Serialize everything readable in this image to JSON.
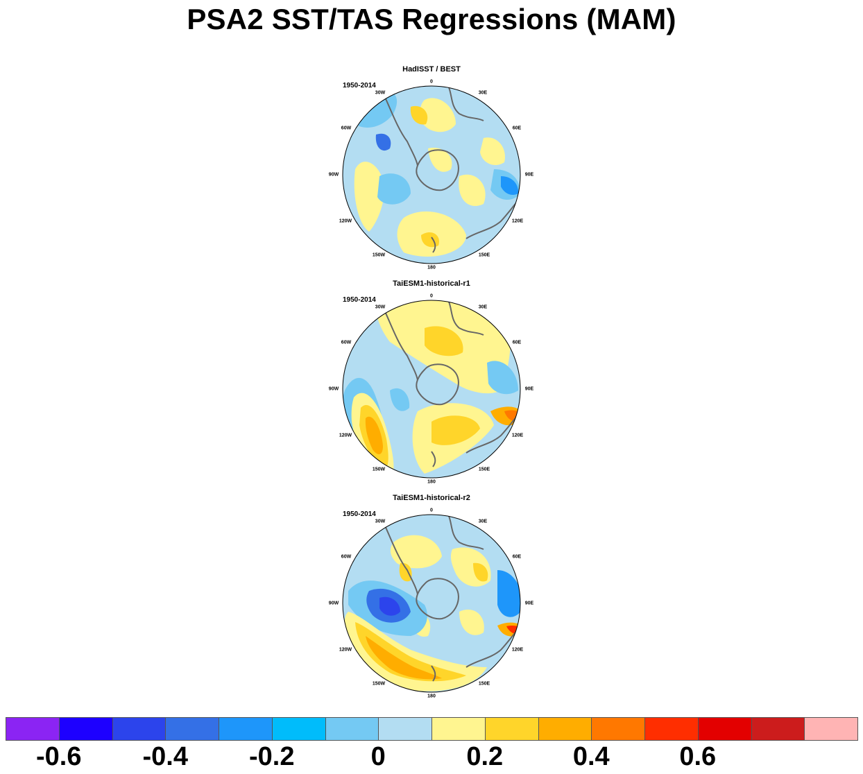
{
  "title": "PSA2 SST/TAS Regressions (MAM)",
  "period": "1950-2014",
  "panels": [
    {
      "title": "HadISST / BEST"
    },
    {
      "title": "TaiESM1-historical-r1"
    },
    {
      "title": "TaiESM1-historical-r2"
    }
  ],
  "longitude_labels": [
    "0",
    "30E",
    "60E",
    "90E",
    "120E",
    "150E",
    "180",
    "150W",
    "120W",
    "90W",
    "60W",
    "30W"
  ],
  "colorbar": {
    "colors": [
      "#8b24f3",
      "#1d00ff",
      "#2c44ec",
      "#3470e6",
      "#1e96fa",
      "#00bcfb",
      "#74c9f3",
      "#b3ddf2",
      "#fff590",
      "#ffd52a",
      "#ffad00",
      "#ff7800",
      "#ff2e00",
      "#e30000",
      "#cc1c1c",
      "#ffb4b4"
    ],
    "tick_labels": [
      "-0.6",
      "-0.4",
      "-0.2",
      "0",
      "0.2",
      "0.4",
      "0.6"
    ]
  }
}
